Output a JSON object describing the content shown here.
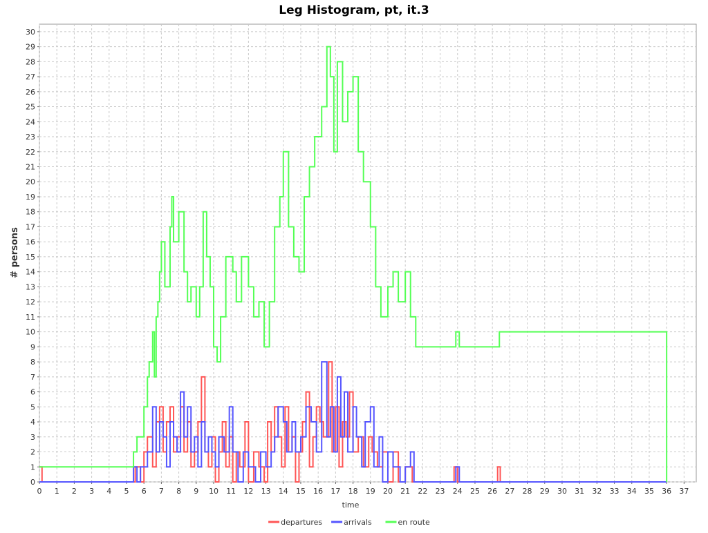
{
  "chart_data": {
    "type": "step-line",
    "title": "Leg Histogram, pt, it.3",
    "x_label": "time",
    "y_label": "# persons",
    "xlim": [
      0,
      37.7
    ],
    "ylim": [
      0,
      30.5
    ],
    "xticks": [
      0,
      1,
      2,
      3,
      4,
      5,
      6,
      7,
      8,
      9,
      10,
      11,
      12,
      13,
      14,
      15,
      16,
      17,
      18,
      19,
      20,
      21,
      22,
      23,
      24,
      25,
      26,
      27,
      28,
      29,
      30,
      31,
      32,
      33,
      34,
      35,
      36,
      37
    ],
    "yticks": [
      0,
      1,
      2,
      3,
      4,
      5,
      6,
      7,
      8,
      9,
      10,
      11,
      12,
      13,
      14,
      15,
      16,
      17,
      18,
      19,
      20,
      21,
      22,
      23,
      24,
      25,
      26,
      27,
      28,
      29,
      30
    ],
    "grid": true,
    "legend": "bottom",
    "series": [
      {
        "name": "departures",
        "color": "#ff5555",
        "x": [
          0,
          0.15,
          5.5,
          5.8,
          6.0,
          6.2,
          6.5,
          6.7,
          6.9,
          7.1,
          7.3,
          7.5,
          7.7,
          7.9,
          8.1,
          8.3,
          8.5,
          8.7,
          8.9,
          9.1,
          9.3,
          9.5,
          9.7,
          9.9,
          10.1,
          10.3,
          10.5,
          10.7,
          10.9,
          11.1,
          11.3,
          11.5,
          11.8,
          12.0,
          12.3,
          12.6,
          12.9,
          13.1,
          13.3,
          13.5,
          13.7,
          13.9,
          14.1,
          14.3,
          14.5,
          14.7,
          14.9,
          15.1,
          15.3,
          15.5,
          15.7,
          15.9,
          16.1,
          16.3,
          16.6,
          16.8,
          17.0,
          17.2,
          17.4,
          17.6,
          17.8,
          18.0,
          18.3,
          18.6,
          18.9,
          19.1,
          19.4,
          19.7,
          20.0,
          20.3,
          20.6,
          21.0,
          21.4,
          23.8,
          24.0,
          26.3,
          26.45,
          36.0
        ],
        "values": [
          1,
          0,
          1,
          0,
          2,
          3,
          1,
          4,
          5,
          2,
          4,
          5,
          2,
          3,
          5,
          2,
          4,
          1,
          2,
          4,
          7,
          2,
          1,
          3,
          0,
          2,
          4,
          1,
          3,
          0,
          2,
          1,
          4,
          0,
          2,
          1,
          0,
          4,
          2,
          5,
          3,
          1,
          5,
          2,
          3,
          0,
          2,
          4,
          6,
          1,
          3,
          5,
          4,
          3,
          8,
          2,
          5,
          1,
          4,
          3,
          6,
          2,
          3,
          1,
          3,
          2,
          1,
          2,
          0,
          2,
          0,
          1,
          0,
          1,
          0,
          1,
          0,
          0
        ]
      },
      {
        "name": "arrivals",
        "color": "#5555ff",
        "x": [
          0,
          5.4,
          5.6,
          5.8,
          6.2,
          6.5,
          6.7,
          6.9,
          7.1,
          7.3,
          7.5,
          7.7,
          7.9,
          8.1,
          8.3,
          8.5,
          8.7,
          8.9,
          9.1,
          9.3,
          9.5,
          9.7,
          9.9,
          10.1,
          10.3,
          10.6,
          10.9,
          11.1,
          11.4,
          11.7,
          12.0,
          12.4,
          12.7,
          13.0,
          13.3,
          13.5,
          13.7,
          14.0,
          14.2,
          14.5,
          14.7,
          15.0,
          15.3,
          15.6,
          15.9,
          16.2,
          16.5,
          16.7,
          16.9,
          17.1,
          17.3,
          17.5,
          17.7,
          18.0,
          18.2,
          18.5,
          18.7,
          19.0,
          19.2,
          19.5,
          19.7,
          20.0,
          20.3,
          20.7,
          21.0,
          21.3,
          21.5,
          23.9,
          24.1,
          36.0
        ],
        "values": [
          0,
          1,
          0,
          1,
          2,
          5,
          2,
          4,
          3,
          1,
          4,
          3,
          2,
          6,
          3,
          5,
          2,
          3,
          1,
          4,
          2,
          3,
          2,
          1,
          3,
          2,
          5,
          2,
          0,
          2,
          1,
          0,
          2,
          1,
          2,
          3,
          5,
          4,
          2,
          4,
          2,
          3,
          5,
          4,
          2,
          8,
          3,
          5,
          2,
          7,
          3,
          6,
          2,
          5,
          3,
          1,
          4,
          5,
          1,
          3,
          0,
          2,
          1,
          0,
          1,
          2,
          0,
          1,
          0,
          0
        ]
      },
      {
        "name": "en route",
        "color": "#55ff55",
        "x": [
          0,
          5.4,
          5.6,
          6.0,
          6.2,
          6.3,
          6.5,
          6.6,
          6.7,
          6.8,
          6.9,
          7.0,
          7.2,
          7.5,
          7.6,
          7.7,
          8.0,
          8.3,
          8.5,
          8.7,
          9.0,
          9.2,
          9.4,
          9.6,
          9.8,
          10.0,
          10.2,
          10.4,
          10.7,
          11.1,
          11.3,
          11.6,
          12.0,
          12.3,
          12.6,
          12.9,
          13.2,
          13.5,
          13.8,
          14.0,
          14.3,
          14.6,
          14.9,
          15.2,
          15.5,
          15.8,
          16.2,
          16.5,
          16.7,
          16.9,
          17.1,
          17.4,
          17.7,
          18.0,
          18.3,
          18.6,
          19.0,
          19.3,
          19.6,
          20.0,
          20.3,
          20.6,
          21.0,
          21.3,
          21.6,
          23.9,
          24.1,
          26.4,
          36.0
        ],
        "values": [
          1,
          2,
          3,
          5,
          7,
          8,
          10,
          7,
          11,
          12,
          14,
          16,
          13,
          17,
          19,
          16,
          18,
          14,
          12,
          13,
          11,
          13,
          18,
          15,
          13,
          9,
          8,
          11,
          15,
          14,
          12,
          15,
          13,
          11,
          12,
          9,
          12,
          17,
          19,
          22,
          17,
          15,
          14,
          19,
          21,
          23,
          25,
          29,
          27,
          22,
          28,
          24,
          26,
          27,
          22,
          20,
          17,
          13,
          11,
          13,
          14,
          12,
          14,
          11,
          9,
          10,
          9,
          10,
          0
        ]
      }
    ]
  }
}
